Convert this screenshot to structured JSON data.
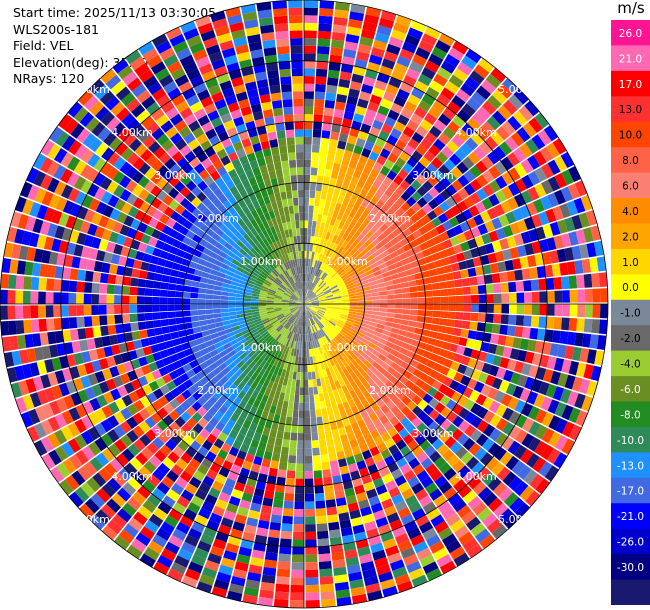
{
  "info": {
    "start_time": "Start time: 2025/11/13 03:30:05",
    "instrument": "WLS200s-181",
    "field": "Field: VEL",
    "elevation": "Elevation(deg): 35.00",
    "nrays": "NRays: 120"
  },
  "chart_data": {
    "type": "heatmap",
    "projection": "polar-ppi",
    "field": "VEL",
    "elevation_deg": 35.0,
    "n_rays": 120,
    "range_rings_km": [
      1,
      2,
      3,
      4,
      5
    ],
    "range_ring_labels": [
      "1.00km",
      "2.00km",
      "3.00km",
      "4.00km",
      "5.00km"
    ],
    "max_range_km": 5.0,
    "noise_free_range_km": 2.6,
    "velocity_pattern": {
      "receding_direction": "east",
      "approaching_direction": "west",
      "peak_abs_velocity_ms": 17.0
    }
  },
  "colorbar": {
    "unit": "m/s",
    "ticks": [
      "26.0",
      "21.0",
      "17.0",
      "13.0",
      "10.0",
      "8.0",
      "6.0",
      "4.0",
      "2.0",
      "1.0",
      "0.0",
      "-1.0",
      "-2.0",
      "-4.0",
      "-6.0",
      "-8.0",
      "-10.0",
      "-13.0",
      "-17.0",
      "-21.0",
      "-26.0",
      "-30.0"
    ],
    "colors": [
      "#ff1493",
      "#ff69b4",
      "#ff0000",
      "#ff3030",
      "#ff4500",
      "#ff6347",
      "#fa8072",
      "#ff8c00",
      "#ffa500",
      "#ffd700",
      "#ffff00",
      "#7a8899",
      "#696969",
      "#9acd32",
      "#6b8e23",
      "#228b22",
      "#2e8b57",
      "#1e90ff",
      "#4169e1",
      "#0000ff",
      "#0000cd",
      "#000080",
      "#191970"
    ]
  }
}
